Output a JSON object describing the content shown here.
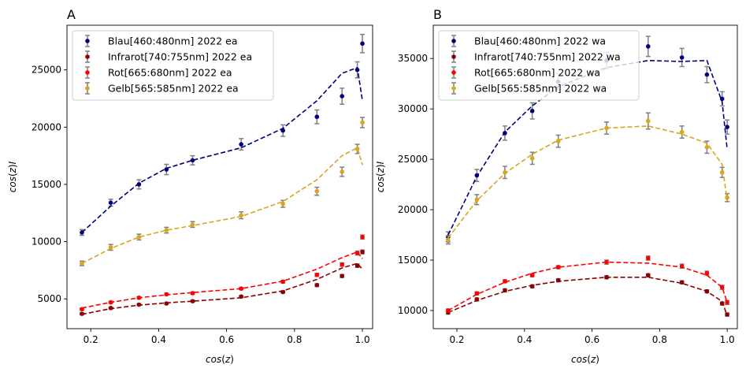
{
  "chart_data": [
    {
      "type": "scatter",
      "panel_label": "A",
      "xlabel": "cos(z)",
      "ylabel": "cos(z)I",
      "xlim": [
        0.13,
        1.03
      ],
      "ylim": [
        2400,
        28900
      ],
      "xticks": [
        0.2,
        0.4,
        0.6,
        0.8,
        1.0
      ],
      "xtick_labels": [
        "0.2",
        "0.4",
        "0.6",
        "0.8",
        "1.0"
      ],
      "yticks": [
        5000,
        10000,
        15000,
        20000,
        25000
      ],
      "ytick_labels": [
        "5000",
        "10000",
        "15000",
        "20000",
        "25000"
      ],
      "grid": false,
      "legend_position": "top-left",
      "series": [
        {
          "name": "Blau[460:480nm] 2022 ea",
          "color": "#00007f",
          "x": [
            0.174,
            0.259,
            0.342,
            0.423,
            0.5,
            0.643,
            0.766,
            0.866,
            0.94,
            0.985,
            1.0
          ],
          "y": [
            10800,
            13400,
            15000,
            16300,
            17100,
            18500,
            19700,
            20900,
            22700,
            25000,
            27300
          ],
          "err": [
            250,
            300,
            400,
            450,
            400,
            500,
            500,
            600,
            700,
            700,
            800
          ],
          "fit_x": [
            0.174,
            0.259,
            0.342,
            0.423,
            0.5,
            0.643,
            0.766,
            0.866,
            0.94,
            0.985,
            1.0
          ],
          "fit_y": [
            10800,
            13100,
            15100,
            16400,
            17100,
            18200,
            19900,
            22300,
            24700,
            25200,
            22300
          ]
        },
        {
          "name": "Infrarot[740:755nm] 2022 ea",
          "color": "#8b0000",
          "x": [
            0.174,
            0.259,
            0.342,
            0.423,
            0.5,
            0.643,
            0.766,
            0.866,
            0.94,
            0.985,
            1.0
          ],
          "y": [
            3700,
            4200,
            4500,
            4600,
            4800,
            5200,
            5600,
            6200,
            7000,
            7900,
            9100
          ],
          "err": [
            80,
            80,
            80,
            80,
            80,
            90,
            100,
            120,
            130,
            150,
            170
          ],
          "fit_x": [
            0.174,
            0.259,
            0.342,
            0.423,
            0.5,
            0.643,
            0.766,
            0.866,
            0.94,
            0.985,
            1.0
          ],
          "fit_y": [
            3650,
            4150,
            4450,
            4650,
            4800,
            5100,
            5700,
            6700,
            7700,
            8100,
            7600
          ]
        },
        {
          "name": "Rot[665:680nm] 2022 ea",
          "color": "#ff0000",
          "x": [
            0.174,
            0.259,
            0.342,
            0.423,
            0.5,
            0.643,
            0.766,
            0.866,
            0.94,
            0.985,
            1.0
          ],
          "y": [
            4100,
            4700,
            5100,
            5400,
            5500,
            5900,
            6500,
            7100,
            8000,
            9000,
            10400
          ],
          "err": [
            90,
            90,
            90,
            90,
            100,
            100,
            110,
            130,
            150,
            170,
            180
          ],
          "fit_x": [
            0.174,
            0.259,
            0.342,
            0.423,
            0.5,
            0.643,
            0.766,
            0.866,
            0.94,
            0.985,
            1.0
          ],
          "fit_y": [
            4200,
            4700,
            5100,
            5350,
            5550,
            5900,
            6550,
            7600,
            8600,
            9100,
            8500
          ]
        },
        {
          "name": "Gelb[565:585nm] 2022 ea",
          "color": "#daa520",
          "x": [
            0.174,
            0.259,
            0.342,
            0.423,
            0.5,
            0.643,
            0.766,
            0.866,
            0.94,
            0.985,
            1.0
          ],
          "y": [
            8100,
            9500,
            10400,
            11000,
            11500,
            12300,
            13300,
            14400,
            16100,
            18100,
            20400
          ],
          "err": [
            200,
            250,
            250,
            250,
            250,
            300,
            300,
            350,
            400,
            400,
            450
          ],
          "fit_x": [
            0.174,
            0.259,
            0.342,
            0.423,
            0.5,
            0.643,
            0.766,
            0.866,
            0.94,
            0.985,
            1.0
          ],
          "fit_y": [
            8100,
            9400,
            10400,
            11000,
            11400,
            12200,
            13500,
            15400,
            17500,
            18200,
            16700
          ]
        }
      ]
    },
    {
      "type": "scatter",
      "panel_label": "B",
      "xlabel": "cos(z)",
      "ylabel": "cos(z)I",
      "xlim": [
        0.13,
        1.03
      ],
      "ylim": [
        8200,
        38300
      ],
      "xticks": [
        0.2,
        0.4,
        0.6,
        0.8,
        1.0
      ],
      "xtick_labels": [
        "0.2",
        "0.4",
        "0.6",
        "0.8",
        "1.0"
      ],
      "yticks": [
        10000,
        15000,
        20000,
        25000,
        30000,
        35000
      ],
      "ytick_labels": [
        "10000",
        "15000",
        "20000",
        "25000",
        "30000",
        "35000"
      ],
      "grid": false,
      "legend_position": "top-left",
      "series": [
        {
          "name": "Blau[460:480nm] 2022 wa",
          "color": "#00007f",
          "x": [
            0.174,
            0.259,
            0.342,
            0.423,
            0.5,
            0.643,
            0.766,
            0.866,
            0.94,
            0.985,
            1.0
          ],
          "y": [
            17300,
            23400,
            27600,
            29800,
            32700,
            34800,
            36200,
            35100,
            33400,
            31000,
            28200
          ],
          "err": [
            500,
            600,
            700,
            800,
            800,
            800,
            1000,
            900,
            800,
            700,
            700
          ],
          "fit_x": [
            0.174,
            0.259,
            0.342,
            0.423,
            0.5,
            0.643,
            0.766,
            0.866,
            0.94,
            0.985,
            1.0
          ],
          "fit_y": [
            17500,
            23300,
            27700,
            30300,
            32200,
            34100,
            34800,
            34700,
            34800,
            30700,
            26000
          ]
        },
        {
          "name": "Infrarot[740:755nm] 2022 wa",
          "color": "#8b0000",
          "x": [
            0.174,
            0.259,
            0.342,
            0.423,
            0.5,
            0.643,
            0.766,
            0.866,
            0.94,
            0.985,
            1.0
          ],
          "y": [
            9800,
            11100,
            12000,
            12400,
            13000,
            13300,
            13500,
            12800,
            11900,
            10700,
            9600
          ],
          "err": [
            150,
            150,
            150,
            150,
            150,
            150,
            150,
            150,
            150,
            150,
            150
          ],
          "fit_x": [
            0.174,
            0.259,
            0.342,
            0.423,
            0.5,
            0.643,
            0.766,
            0.866,
            0.94,
            0.985,
            1.0
          ],
          "fit_y": [
            9800,
            11000,
            11900,
            12500,
            12900,
            13300,
            13300,
            12700,
            11900,
            10900,
            9500
          ]
        },
        {
          "name": "Rot[665:680nm] 2022 wa",
          "color": "#ff0000",
          "x": [
            0.174,
            0.259,
            0.342,
            0.423,
            0.5,
            0.643,
            0.766,
            0.866,
            0.94,
            0.985,
            1.0
          ],
          "y": [
            10000,
            11700,
            12900,
            13500,
            14300,
            14800,
            15200,
            14400,
            13700,
            12300,
            10800
          ],
          "err": [
            150,
            150,
            150,
            150,
            150,
            200,
            200,
            200,
            200,
            200,
            200
          ],
          "fit_x": [
            0.174,
            0.259,
            0.342,
            0.423,
            0.5,
            0.643,
            0.766,
            0.866,
            0.94,
            0.985,
            1.0
          ],
          "fit_y": [
            10000,
            11600,
            12800,
            13700,
            14300,
            14800,
            14700,
            14300,
            13500,
            12300,
            10800
          ]
        },
        {
          "name": "Gelb[565:585nm] 2022 wa",
          "color": "#daa520",
          "x": [
            0.174,
            0.259,
            0.342,
            0.423,
            0.5,
            0.643,
            0.766,
            0.866,
            0.94,
            0.985,
            1.0
          ],
          "y": [
            17000,
            21000,
            23700,
            25100,
            26800,
            28100,
            28800,
            27700,
            26200,
            23700,
            21200
          ],
          "err": [
            400,
            500,
            600,
            600,
            600,
            600,
            800,
            600,
            600,
            500,
            400
          ],
          "fit_x": [
            0.174,
            0.259,
            0.342,
            0.423,
            0.5,
            0.643,
            0.766,
            0.866,
            0.94,
            0.985,
            1.0
          ],
          "fit_y": [
            17200,
            20900,
            23600,
            25500,
            26900,
            28100,
            28300,
            27500,
            26600,
            24500,
            20900
          ]
        }
      ]
    }
  ]
}
